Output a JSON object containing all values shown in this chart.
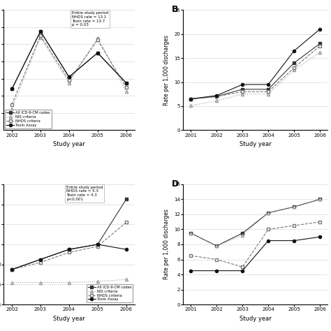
{
  "panel_A": {
    "years": [
      2002,
      2003,
      2004,
      2005,
      2006
    ],
    "icd": [
      12.8,
      19.5,
      14.2,
      17.0,
      13.5
    ],
    "nis": [
      10.5,
      18.8,
      13.5,
      18.8,
      12.5
    ],
    "nhds": [
      11.0,
      19.0,
      13.8,
      18.5,
      13.0
    ],
    "toxin": [
      12.8,
      19.5,
      14.2,
      17.0,
      13.5
    ],
    "annotation": "Entire study period\nNHDS rate = 13.1\nToxin rate = 13.7\np = 0.03",
    "xlabel": "Study year",
    "ylabel": "",
    "ylim": [
      8,
      22
    ],
    "yticks": [
      10,
      12,
      14,
      16,
      18,
      20,
      22
    ]
  },
  "panel_B": {
    "years": [
      2001,
      2002,
      2003,
      2004,
      2005,
      2006
    ],
    "icd": [
      6.5,
      7.0,
      8.5,
      8.5,
      14.0,
      18.0
    ],
    "nis": [
      5.1,
      6.1,
      7.5,
      7.5,
      12.5,
      16.2
    ],
    "nhds": [
      6.5,
      7.0,
      8.0,
      8.0,
      13.0,
      17.5
    ],
    "toxin": [
      6.5,
      7.2,
      9.5,
      9.5,
      16.5,
      21.0
    ],
    "xlabel": "Study year",
    "ylabel": "Rate per 1,000 discharges",
    "ylim": [
      0,
      25
    ],
    "yticks": [
      0,
      5,
      10,
      15,
      20,
      25
    ]
  },
  "panel_C": {
    "years": [
      2002,
      2003,
      2004,
      2005,
      2006
    ],
    "icd": [
      7.5,
      8.5,
      9.5,
      10.0,
      14.5
    ],
    "nis": [
      6.3,
      6.2,
      6.2,
      6.3,
      6.5
    ],
    "nhds": [
      7.5,
      8.2,
      9.0,
      9.8,
      12.2
    ],
    "toxin": [
      7.5,
      8.5,
      9.5,
      10.0,
      9.5
    ],
    "annotation": "Entire study period\nNHDS rate = 5.3\nToxin rate = 4.3\np<0.001",
    "xlabel": "Study year",
    "ylabel": "",
    "ylim": [
      4,
      16
    ],
    "yticks": [
      4,
      6,
      8,
      10,
      12,
      14,
      16
    ]
  },
  "panel_D": {
    "years": [
      2001,
      2002,
      2003,
      2004,
      2005,
      2006
    ],
    "icd": [
      9.5,
      7.8,
      9.5,
      12.2,
      13.0,
      14.0
    ],
    "nis": [
      9.5,
      7.8,
      9.2,
      12.2,
      13.0,
      14.0
    ],
    "nhds": [
      6.5,
      6.0,
      5.0,
      10.0,
      10.5,
      11.0
    ],
    "toxin": [
      4.5,
      4.5,
      4.5,
      8.5,
      8.5,
      9.0
    ],
    "xlabel": "Study year",
    "ylabel": "Rate per 1,000 discharges",
    "ylim": [
      0,
      16
    ],
    "yticks": [
      0,
      2,
      4,
      6,
      8,
      10,
      12,
      14,
      16
    ]
  },
  "legend_labels": [
    "All ICD-9-CM codes",
    "NIS criteria",
    "NHDS criteria",
    "Toxin Assay"
  ],
  "icd_style": {
    "ls": "solid",
    "marker": "s",
    "color": "#333333",
    "filled": true
  },
  "nis_style": {
    "ls": "dotted",
    "marker": "^",
    "color": "#999999",
    "filled": false
  },
  "nhds_style": {
    "ls": "dashed",
    "marker": "s",
    "color": "#777777",
    "filled": false
  },
  "toxin_style": {
    "ls": "solid",
    "marker": "o",
    "color": "#111111",
    "filled": true
  }
}
